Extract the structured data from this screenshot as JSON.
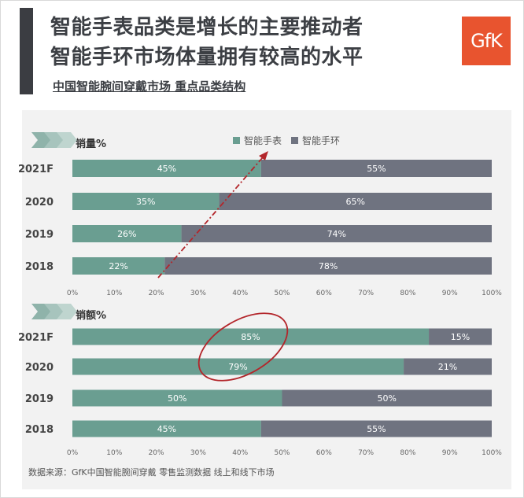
{
  "header": {
    "title_line1": "智能手表品类是增长的主要推动者",
    "title_line2": "智能手环市场体量拥有较高的水平",
    "subtitle": "中国智能腕间穿戴市场 重点品类结构",
    "logo_text": "GfK"
  },
  "legend": {
    "items": [
      {
        "label": "智能手表",
        "color": "#6a9e91"
      },
      {
        "label": "智能手环",
        "color": "#6f7380"
      }
    ]
  },
  "chart_data": [
    {
      "type": "bar",
      "orientation": "horizontal",
      "stacked": true,
      "title": "销量%",
      "categories": [
        "2021F",
        "2020",
        "2019",
        "2018"
      ],
      "series": [
        {
          "name": "智能手表",
          "values": [
            45,
            35,
            26,
            22
          ],
          "color": "#6a9e91"
        },
        {
          "name": "智能手环",
          "values": [
            55,
            65,
            74,
            78
          ],
          "color": "#6f7380"
        }
      ],
      "data_labels": [
        [
          "45%",
          "35%",
          "26%",
          "22%"
        ],
        [
          "55%",
          "65%",
          "74%",
          "78%"
        ]
      ],
      "xlim": [
        0,
        100
      ],
      "xticks": [
        "0%",
        "10%",
        "20%",
        "30%",
        "40%",
        "50%",
        "60%",
        "70%",
        "80%",
        "90%",
        "100%"
      ],
      "annotation": "dashed-arrow"
    },
    {
      "type": "bar",
      "orientation": "horizontal",
      "stacked": true,
      "title": "销额%",
      "categories": [
        "2021F",
        "2020",
        "2019",
        "2018"
      ],
      "series": [
        {
          "name": "智能手表",
          "values": [
            85,
            79,
            50,
            45
          ],
          "color": "#6a9e91"
        },
        {
          "name": "智能手环",
          "values": [
            15,
            21,
            50,
            55
          ],
          "color": "#6f7380"
        }
      ],
      "data_labels": [
        [
          "85%",
          "79%",
          "50%",
          "45%"
        ],
        [
          "15%",
          "21%",
          "50%",
          "55%"
        ]
      ],
      "xlim": [
        0,
        100
      ],
      "xticks": [
        "0%",
        "10%",
        "20%",
        "30%",
        "40%",
        "50%",
        "60%",
        "70%",
        "80%",
        "90%",
        "100%"
      ],
      "annotation": "ellipse"
    }
  ],
  "footer": {
    "source": "数据来源：GfK中国智能腕间穿戴 零售监测数据 线上和线下市场"
  }
}
